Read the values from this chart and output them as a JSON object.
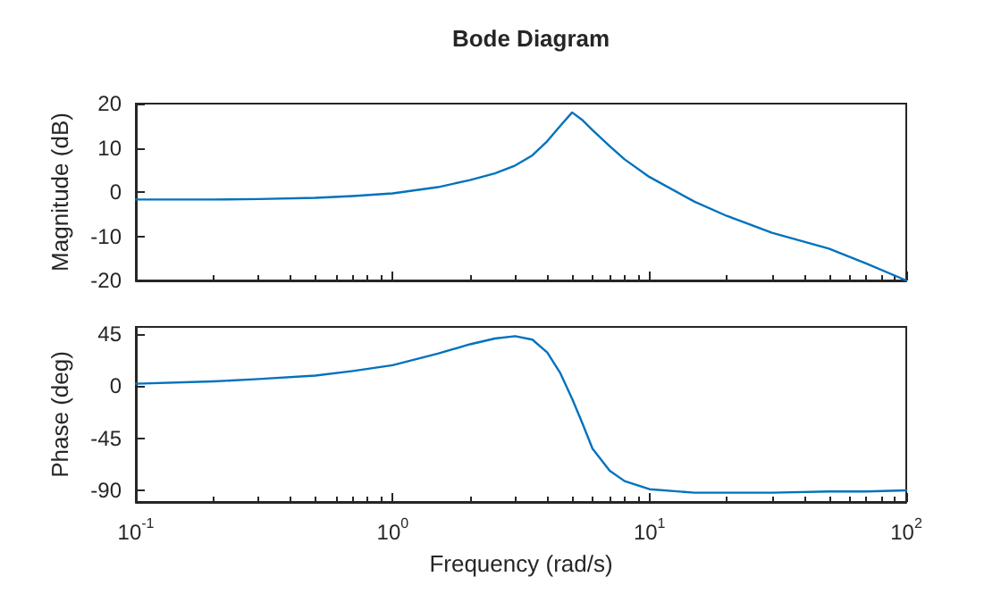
{
  "chart_data": [
    {
      "type": "line",
      "title": "Bode Diagram",
      "ylabel": "Magnitude (dB)",
      "log": "x",
      "grid": false,
      "marker": "none",
      "line_style": "solid",
      "tick_labels": "y",
      "xlim": [
        0.1,
        100
      ],
      "xticks": [
        {
          "value": 0.1,
          "label": null
        },
        {
          "value": 1,
          "label": null
        },
        {
          "value": 10,
          "label": null
        },
        {
          "value": 100,
          "label": null
        }
      ],
      "ylim": [
        -20,
        20
      ],
      "yticks": [
        -20,
        -10,
        0,
        10,
        20
      ],
      "x": [
        0.1,
        0.2,
        0.3,
        0.5,
        0.7,
        1,
        1.5,
        2,
        2.5,
        3,
        3.5,
        4,
        4.5,
        5,
        5.5,
        6,
        7,
        8,
        10,
        15,
        20,
        30,
        50,
        70,
        100
      ],
      "series": [
        {
          "color": "#0072bd",
          "values": [
            -1.7,
            -1.7,
            -1.6,
            -1.3,
            -0.9,
            -0.3,
            1.1,
            2.7,
            4.2,
            6,
            8.3,
            11.5,
            15,
            18,
            16.2,
            14,
            10.4,
            7.4,
            3.4,
            -2.2,
            -5.4,
            -9.2,
            -12.8,
            -16.2,
            -20
          ]
        }
      ]
    },
    {
      "type": "line",
      "xlabel": "Frequency (rad/s)",
      "ylabel": "Phase (deg)",
      "log": "x",
      "grid": false,
      "marker": "none",
      "line_style": "solid",
      "xlim": [
        0.1,
        100
      ],
      "xticks": [
        {
          "value": 0.1,
          "label": "10$^{-1}$"
        },
        {
          "value": 1,
          "label": "10$^{0}$"
        },
        {
          "value": 10,
          "label": "10$^{1}$"
        },
        {
          "value": 100,
          "label": "10$^{2}$"
        }
      ],
      "ylim": [
        -100,
        51
      ],
      "yticks": [
        -90,
        -45,
        0,
        45
      ],
      "x": [
        0.1,
        0.2,
        0.3,
        0.5,
        0.7,
        1,
        1.5,
        2,
        2.5,
        3,
        3.5,
        4,
        4.5,
        5,
        5.5,
        6,
        7,
        8,
        10,
        15,
        20,
        30,
        50,
        70,
        100
      ],
      "series": [
        {
          "color": "#0072bd",
          "values": [
            2,
            4,
            6,
            9,
            13,
            18,
            28,
            36,
            41,
            43,
            40,
            29,
            11,
            -11,
            -33,
            -54,
            -73,
            -82,
            -89,
            -92,
            -92,
            -92,
            -91,
            -91,
            -90
          ]
        }
      ]
    }
  ]
}
